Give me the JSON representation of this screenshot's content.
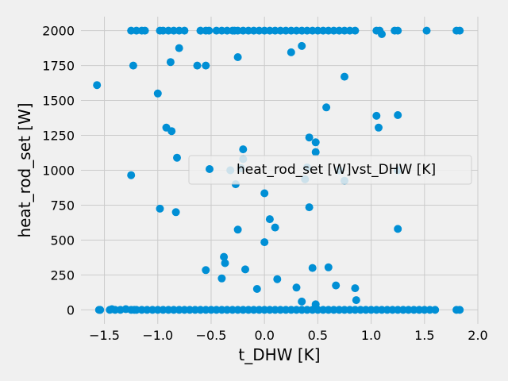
{
  "chart_data": {
    "type": "scatter",
    "xlabel": "t_DHW [K]",
    "ylabel": "heat_rod_set [W]",
    "xlim": [
      -1.72,
      2.0
    ],
    "ylim": [
      -100,
      2100
    ],
    "xticks": [
      "−1.5",
      "−1.0",
      "−0.5",
      "0.0",
      "0.5",
      "1.0",
      "1.5",
      "2.0"
    ],
    "xtick_values": [
      -1.5,
      -1.0,
      -0.5,
      0.0,
      0.5,
      1.0,
      1.5,
      2.0
    ],
    "yticks": [
      "0",
      "250",
      "500",
      "750",
      "1000",
      "1250",
      "1500",
      "1750",
      "2000"
    ],
    "ytick_values": [
      0,
      250,
      500,
      750,
      1000,
      1250,
      1500,
      1750,
      2000
    ],
    "grid": true,
    "legend_position": "center-right",
    "color": "#008fd5",
    "series": [
      {
        "name": "heat_rod_set [W]vst_DHW [K]",
        "x": [
          -1.55,
          -1.54,
          -1.45,
          -1.43,
          -1.4,
          -1.35,
          -1.3,
          -1.25,
          -1.22,
          -1.2,
          -1.15,
          -1.1,
          -1.05,
          -1.0,
          -0.95,
          -0.9,
          -0.85,
          -0.8,
          -0.75,
          -0.7,
          -0.65,
          -0.6,
          -0.55,
          -0.5,
          -0.45,
          -0.4,
          -0.35,
          -0.3,
          -0.25,
          -0.2,
          -0.15,
          -0.1,
          -0.05,
          0.0,
          0.05,
          0.1,
          0.15,
          0.2,
          0.25,
          0.3,
          0.35,
          0.4,
          0.45,
          0.5,
          0.55,
          0.6,
          0.65,
          0.7,
          0.75,
          0.8,
          0.85,
          0.9,
          0.95,
          1.0,
          1.05,
          1.1,
          1.15,
          1.2,
          1.25,
          1.3,
          1.35,
          1.4,
          1.45,
          1.5,
          1.55,
          1.6,
          1.8,
          1.83,
          -1.25,
          -1.2,
          -1.15,
          -1.12,
          -0.98,
          -0.95,
          -0.9,
          -0.85,
          -0.8,
          -0.75,
          -0.6,
          -0.55,
          -0.52,
          -0.45,
          -0.4,
          -0.35,
          -0.3,
          -0.28,
          -0.25,
          -0.2,
          -0.15,
          -0.1,
          -0.05,
          0.0,
          0.05,
          0.1,
          0.15,
          0.2,
          0.25,
          0.3,
          0.35,
          0.4,
          0.45,
          0.5,
          0.55,
          0.6,
          0.65,
          0.7,
          0.75,
          0.8,
          0.85,
          1.05,
          1.08,
          1.1,
          1.22,
          1.25,
          1.52,
          1.8,
          1.83,
          -1.57,
          -1.23,
          -0.88,
          -0.63,
          -0.55,
          -0.8,
          -0.25,
          0.25,
          0.35,
          0.75,
          -1.0,
          0.58,
          -0.92,
          -0.87,
          1.07,
          1.25,
          1.05,
          -0.2,
          -0.82,
          0.42,
          0.48,
          0.48,
          -0.22,
          -0.2,
          0.4,
          -0.27,
          -1.25,
          0.7,
          0.75,
          1.25,
          -0.32,
          0.38,
          0.0,
          -0.98,
          -0.83,
          0.42,
          0.05,
          0.1,
          -0.25,
          0.0,
          1.25,
          0.6,
          0.45,
          -0.38,
          -0.37,
          -0.18,
          -0.55,
          -0.4,
          0.12,
          0.67,
          -0.07,
          0.85,
          0.3,
          0.35,
          0.86,
          0.48
        ],
        "y": [
          0,
          0,
          0,
          5,
          0,
          0,
          5,
          0,
          0,
          0,
          0,
          0,
          0,
          0,
          0,
          0,
          0,
          0,
          0,
          0,
          0,
          0,
          0,
          0,
          0,
          0,
          0,
          0,
          0,
          0,
          0,
          0,
          0,
          0,
          0,
          0,
          0,
          0,
          0,
          0,
          0,
          0,
          0,
          0,
          0,
          0,
          0,
          0,
          0,
          0,
          0,
          0,
          0,
          0,
          0,
          0,
          0,
          0,
          0,
          0,
          0,
          0,
          0,
          0,
          0,
          0,
          0,
          0,
          2000,
          2000,
          2000,
          2000,
          2000,
          2000,
          2000,
          2000,
          2000,
          2000,
          2000,
          2000,
          2000,
          2000,
          2000,
          2000,
          2000,
          2000,
          2000,
          2000,
          2000,
          2000,
          2000,
          2000,
          2000,
          2000,
          2000,
          2000,
          2000,
          2000,
          2000,
          2000,
          2000,
          2000,
          2000,
          2000,
          2000,
          2000,
          2000,
          2000,
          2000,
          2000,
          2000,
          1975,
          2000,
          2000,
          2000,
          2000,
          2000,
          1610,
          1750,
          1775,
          1750,
          1750,
          1875,
          1810,
          1845,
          1890,
          1670,
          1550,
          1450,
          1305,
          1280,
          1305,
          1395,
          1390,
          1150,
          1090,
          1235,
          1200,
          1130,
          1015,
          1080,
          1020,
          900,
          965,
          1000,
          925,
          1000,
          1000,
          935,
          835,
          725,
          700,
          735,
          650,
          590,
          575,
          485,
          580,
          305,
          300,
          380,
          335,
          290,
          285,
          225,
          220,
          175,
          150,
          155,
          160,
          60,
          70,
          40
        ]
      }
    ]
  }
}
